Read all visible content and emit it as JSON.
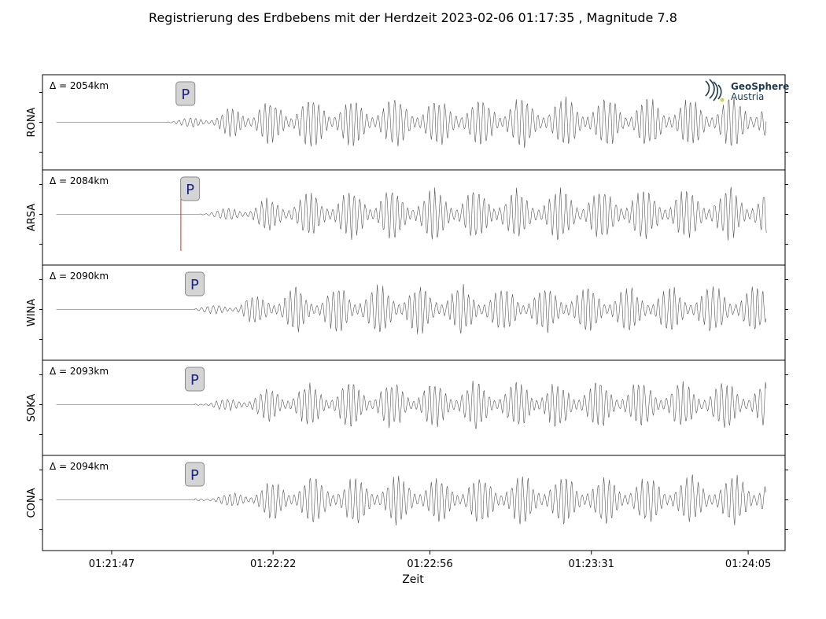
{
  "figure": {
    "title": "Registrierung des Erdbebens mit der Herdzeit 2023-02-06 01:17:35 , Magnitude 7.8",
    "logo": {
      "name": "GeoSphere",
      "sub": "Austria",
      "icon": "geosphere-logo-icon",
      "color": "#1e3a4c",
      "accent": "#c8d44a"
    }
  },
  "chart_data": {
    "type": "line",
    "title": "Registrierung des Erdbebens mit der Herdzeit 2023-02-06 01:17:35 , Magnitude 7.8",
    "xlabel": "Zeit",
    "ylabel": "",
    "x_tick_labels": [
      "01:21:47",
      "01:22:22",
      "01:22:56",
      "01:23:31",
      "01:24:05"
    ],
    "x_range": [
      "01:21:32",
      "01:24:13"
    ],
    "phase_marker_label": "P",
    "trace_color": "#555555",
    "pick_line_color": "#c0392b",
    "panels": [
      {
        "station": "RONA",
        "distance_label": "Δ = 2054km",
        "p_arrival": "01:22:03",
        "signal_start": "01:21:59",
        "trace_end": "01:24:09",
        "amplitude_scale": 0.9,
        "seed": 11
      },
      {
        "station": "ARSA",
        "distance_label": "Δ = 2084km",
        "p_arrival": "01:22:04",
        "signal_start": "01:22:06",
        "trace_end": "01:24:09",
        "amplitude_scale": 0.95,
        "seed": 23,
        "pick_line": "01:22:02"
      },
      {
        "station": "WINA",
        "distance_label": "Δ = 2090km",
        "p_arrival": "01:22:05",
        "signal_start": "01:22:05",
        "trace_end": "01:24:09",
        "amplitude_scale": 0.9,
        "seed": 37
      },
      {
        "station": "SOKA",
        "distance_label": "Δ = 2093km",
        "p_arrival": "01:22:05",
        "signal_start": "01:22:05",
        "trace_end": "01:24:09",
        "amplitude_scale": 0.85,
        "seed": 41
      },
      {
        "station": "CONA",
        "distance_label": "Δ = 2094km",
        "p_arrival": "01:22:05",
        "signal_start": "01:22:05",
        "trace_end": "01:24:09",
        "amplitude_scale": 0.9,
        "seed": 53
      }
    ]
  }
}
